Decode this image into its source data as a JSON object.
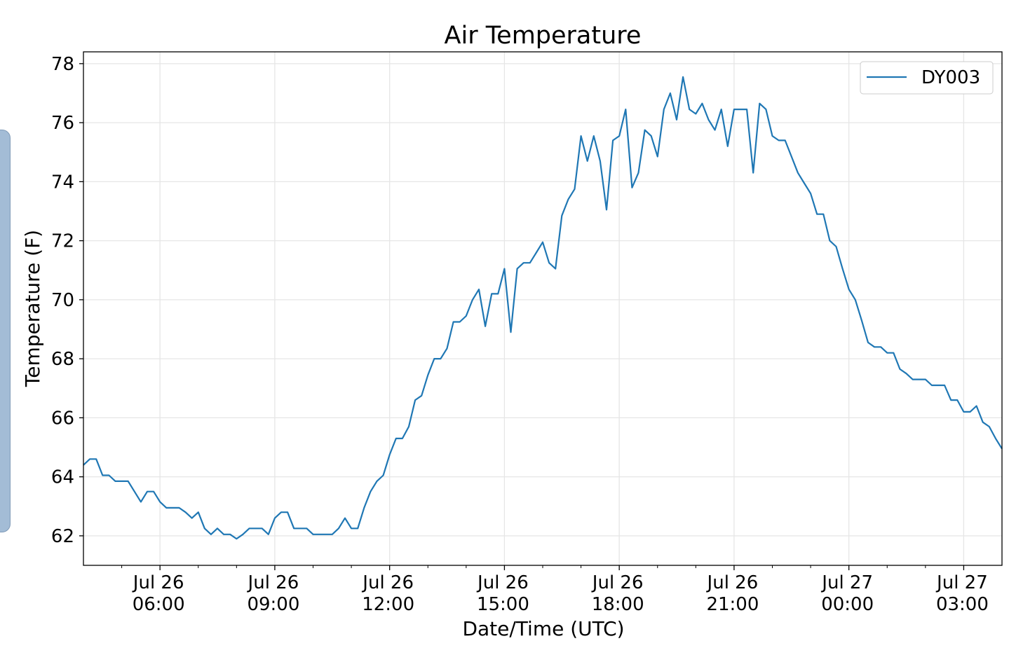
{
  "chart_data": {
    "type": "line",
    "title": "Air Temperature",
    "xlabel": "Date/Time (UTC)",
    "ylabel": "Temperature (F)",
    "x_start": "Jul 26 04:00",
    "x_end": "Jul 27 04:00",
    "x_range_hours": [
      0,
      24
    ],
    "ylim": [
      61,
      78.4
    ],
    "grid": true,
    "legend_position": "top-right",
    "yticks": [
      62,
      64,
      66,
      68,
      70,
      72,
      74,
      76,
      78
    ],
    "xticks": [
      {
        "hour": 2,
        "line1": "Jul 26",
        "line2": "06:00"
      },
      {
        "hour": 5,
        "line1": "Jul 26",
        "line2": "09:00"
      },
      {
        "hour": 8,
        "line1": "Jul 26",
        "line2": "12:00"
      },
      {
        "hour": 11,
        "line1": "Jul 26",
        "line2": "15:00"
      },
      {
        "hour": 14,
        "line1": "Jul 26",
        "line2": "18:00"
      },
      {
        "hour": 17,
        "line1": "Jul 26",
        "line2": "21:00"
      },
      {
        "hour": 20,
        "line1": "Jul 27",
        "line2": "00:00"
      },
      {
        "hour": 23,
        "line1": "Jul 27",
        "line2": "03:00"
      }
    ],
    "series": [
      {
        "name": "DY003",
        "color": "#1f77b4",
        "values": [
          64.4,
          64.6,
          64.6,
          64.05,
          64.05,
          63.85,
          63.85,
          63.85,
          63.5,
          63.15,
          63.5,
          63.5,
          63.15,
          62.95,
          62.95,
          62.95,
          62.8,
          62.6,
          62.8,
          62.25,
          62.05,
          62.25,
          62.05,
          62.05,
          61.9,
          62.05,
          62.25,
          62.25,
          62.25,
          62.05,
          62.6,
          62.8,
          62.8,
          62.25,
          62.25,
          62.25,
          62.05,
          62.05,
          62.05,
          62.05,
          62.25,
          62.6,
          62.25,
          62.25,
          62.95,
          63.5,
          63.85,
          64.05,
          64.75,
          65.3,
          65.3,
          65.7,
          66.6,
          66.75,
          67.45,
          68.0,
          68.0,
          68.35,
          69.25,
          69.25,
          69.45,
          70.0,
          70.35,
          69.1,
          70.2,
          70.2,
          71.05,
          68.9,
          71.05,
          71.25,
          71.25,
          71.6,
          71.95,
          71.25,
          71.05,
          72.85,
          73.4,
          73.75,
          75.55,
          74.7,
          75.55,
          74.7,
          73.05,
          75.4,
          75.55,
          76.45,
          73.8,
          74.3,
          75.75,
          75.55,
          74.85,
          76.45,
          77.0,
          76.1,
          77.55,
          76.45,
          76.3,
          76.65,
          76.1,
          75.75,
          76.45,
          75.2,
          76.45,
          76.45,
          76.45,
          74.3,
          76.65,
          76.45,
          75.55,
          75.4,
          75.4,
          74.85,
          74.3,
          73.95,
          73.6,
          72.9,
          72.9,
          72.0,
          71.8,
          71.05,
          70.35,
          70.0,
          69.3,
          68.55,
          68.4,
          68.4,
          68.2,
          68.2,
          67.65,
          67.5,
          67.3,
          67.3,
          67.3,
          67.1,
          67.1,
          67.1,
          66.6,
          66.6,
          66.2,
          66.2,
          66.4,
          65.85,
          65.7,
          65.3,
          64.95
        ]
      }
    ]
  }
}
